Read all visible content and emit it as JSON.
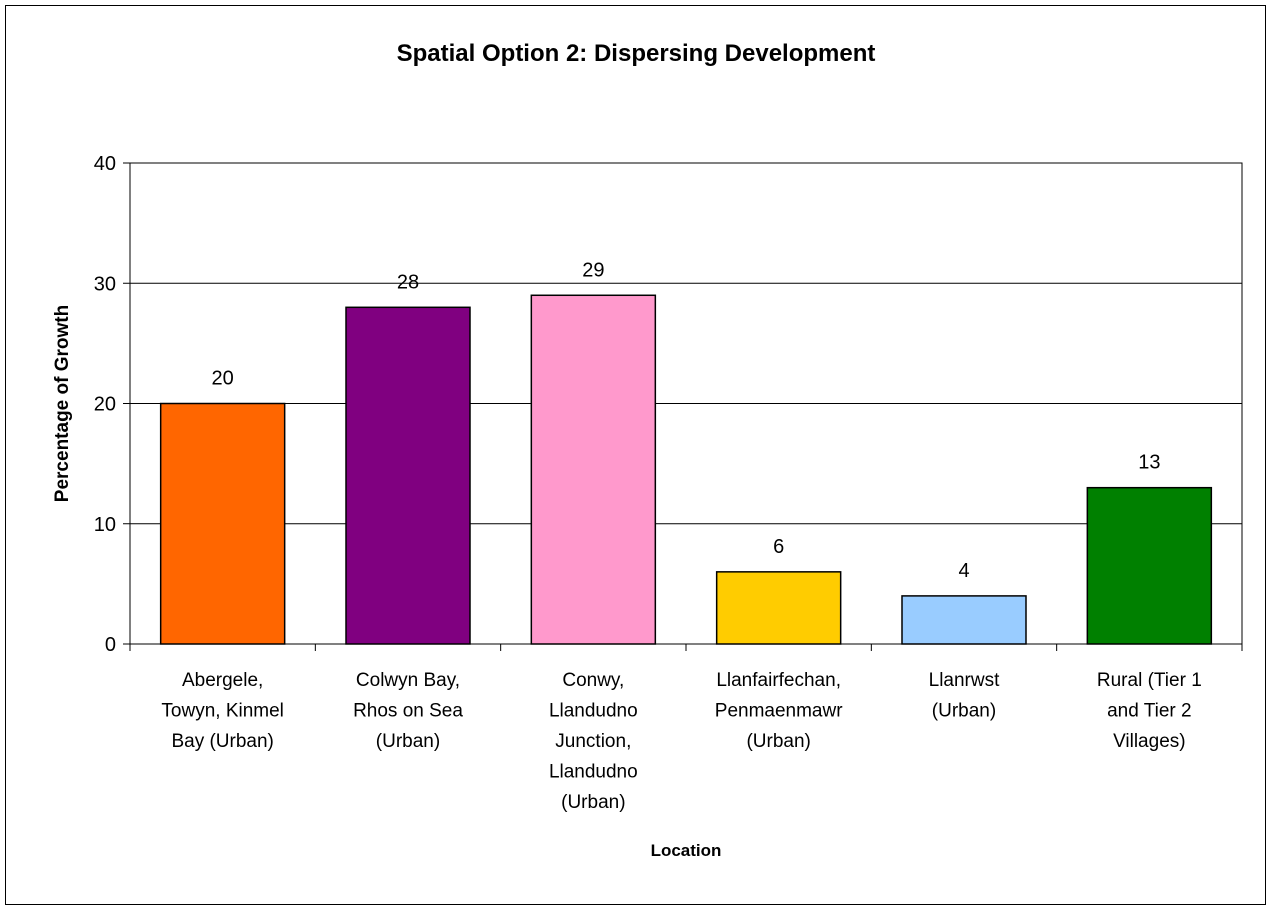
{
  "chart_data": {
    "type": "bar",
    "title": "Spatial Option 2: Dispersing Development",
    "xlabel": "Location",
    "ylabel": "Percentage of Growth",
    "ylim": [
      0,
      40
    ],
    "yticks": [
      0,
      10,
      20,
      30,
      40
    ],
    "grid": true,
    "categories": [
      "Abergele, Towyn, Kinmel Bay (Urban)",
      "Colwyn Bay, Rhos on Sea (Urban)",
      "Conwy, Llandudno Junction, Llandudno (Urban)",
      "Llanfairfechan, Penmaenmawr (Urban)",
      "Llanrwst (Urban)",
      "Rural (Tier 1 and Tier 2 Villages)"
    ],
    "category_lines": [
      [
        "Abergele,",
        "Towyn, Kinmel",
        "Bay (Urban)"
      ],
      [
        "Colwyn Bay,",
        "Rhos on Sea",
        "(Urban)"
      ],
      [
        "Conwy,",
        "Llandudno",
        "Junction,",
        "Llandudno",
        "(Urban)"
      ],
      [
        "Llanfairfechan,",
        "Penmaenmawr",
        "(Urban)"
      ],
      [
        "Llanrwst",
        "(Urban)"
      ],
      [
        "Rural (Tier 1",
        "and Tier 2",
        "Villages)"
      ]
    ],
    "values": [
      20,
      28,
      29,
      6,
      4,
      13
    ],
    "colors": [
      "#FF6600",
      "#800080",
      "#FF99CC",
      "#FFCC00",
      "#99CCFF",
      "#008000"
    ]
  }
}
